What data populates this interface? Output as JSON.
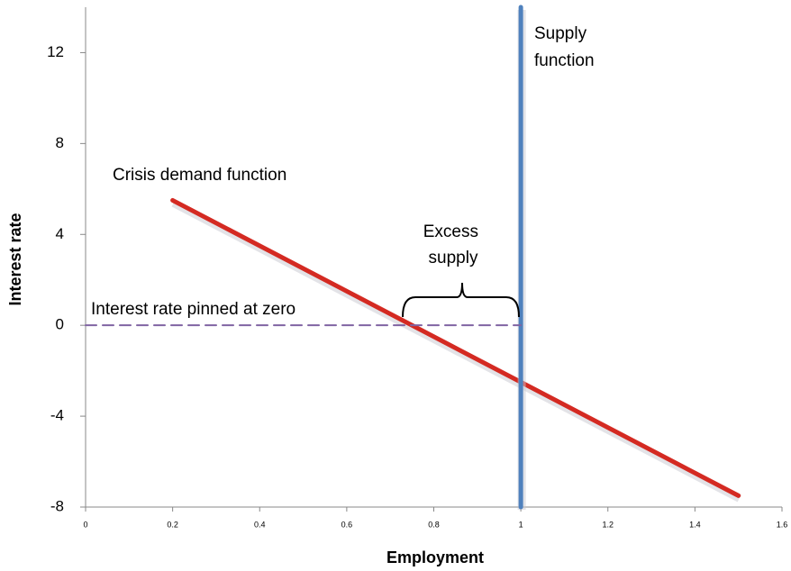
{
  "chart_data": {
    "type": "line",
    "xlabel": "Employment",
    "ylabel": "Interest rate",
    "xlim": [
      0,
      1.6
    ],
    "xticks": [
      0,
      0.2,
      0.4,
      0.6,
      0.8,
      1,
      1.2,
      1.4,
      1.6
    ],
    "ylim": [
      -8,
      14
    ],
    "yticks": [
      -8,
      -4,
      0,
      4,
      8,
      12
    ],
    "series": [
      {
        "name": "Crisis demand function",
        "color": "#d42a22",
        "x": [
          0.2,
          1.5
        ],
        "values": [
          5.5,
          -7.5
        ]
      },
      {
        "name": "Supply function",
        "color": "#4f81bd",
        "x": [
          1,
          1
        ],
        "values": [
          -8,
          14
        ]
      },
      {
        "name": "Interest rate pinned at zero",
        "color": "#8064a2",
        "x": [
          0,
          1
        ],
        "values": [
          0,
          0
        ],
        "dashed": true
      }
    ],
    "annotations": [
      {
        "text": "Excess supply"
      }
    ]
  }
}
